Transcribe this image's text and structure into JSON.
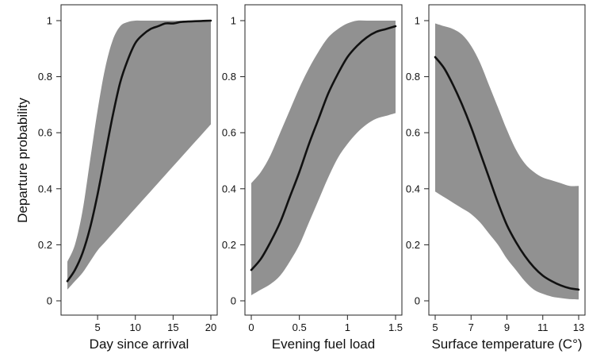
{
  "chart_data": [
    {
      "type": "line",
      "title": "",
      "xlabel": "Day since arrival",
      "ylabel": "Departure probability",
      "xlim": [
        1,
        20
      ],
      "ylim": [
        0,
        1
      ],
      "xticks": [
        5,
        10,
        15,
        20
      ],
      "xtick_labels": [
        "5",
        "10",
        "15",
        "20"
      ],
      "yticks": [
        0,
        0.2,
        0.4,
        0.6,
        0.8,
        1
      ],
      "ytick_labels": [
        "0",
        "0.2",
        "0.4",
        "0.6",
        "0.8",
        "1"
      ],
      "x": [
        1,
        2,
        3,
        4,
        5,
        6,
        7,
        8,
        9,
        10,
        11,
        12,
        13,
        14,
        15,
        16,
        17,
        18,
        19,
        20
      ],
      "series": [
        {
          "values": [
            0.07,
            0.11,
            0.17,
            0.26,
            0.38,
            0.52,
            0.66,
            0.78,
            0.86,
            0.92,
            0.95,
            0.97,
            0.98,
            0.99,
            0.99,
            0.995,
            0.997,
            0.998,
            0.999,
            1.0
          ],
          "lower": [
            0.04,
            0.07,
            0.1,
            0.14,
            0.18,
            0.21,
            0.24,
            0.27,
            0.3,
            0.33,
            0.36,
            0.39,
            0.42,
            0.45,
            0.48,
            0.51,
            0.54,
            0.57,
            0.6,
            0.63
          ],
          "upper": [
            0.14,
            0.2,
            0.32,
            0.5,
            0.68,
            0.83,
            0.93,
            0.98,
            0.995,
            1.0,
            1.0,
            1.0,
            1.0,
            1.0,
            1.0,
            1.0,
            1.0,
            1.0,
            1.0,
            1.0
          ]
        }
      ],
      "grid": false,
      "colors": {
        "band": "#919191",
        "line": "#111111"
      }
    },
    {
      "type": "line",
      "title": "",
      "xlabel": "Evening fuel load",
      "ylabel": "",
      "xlim": [
        0,
        1.5
      ],
      "ylim": [
        0,
        1
      ],
      "xticks": [
        0,
        0.5,
        1,
        1.5
      ],
      "xtick_labels": [
        "0",
        "0.5",
        "1",
        "1.5"
      ],
      "yticks": [
        0,
        0.2,
        0.4,
        0.6,
        0.8,
        1
      ],
      "ytick_labels": [
        "0",
        "0.2",
        "0.4",
        "0.6",
        "0.8",
        "1"
      ],
      "x": [
        0,
        0.1,
        0.2,
        0.3,
        0.4,
        0.5,
        0.6,
        0.7,
        0.8,
        0.9,
        1.0,
        1.1,
        1.2,
        1.3,
        1.4,
        1.5
      ],
      "series": [
        {
          "values": [
            0.11,
            0.15,
            0.21,
            0.28,
            0.37,
            0.46,
            0.56,
            0.65,
            0.74,
            0.81,
            0.87,
            0.91,
            0.94,
            0.96,
            0.97,
            0.98
          ],
          "lower": [
            0.02,
            0.04,
            0.06,
            0.09,
            0.14,
            0.2,
            0.28,
            0.36,
            0.44,
            0.51,
            0.56,
            0.6,
            0.63,
            0.65,
            0.66,
            0.67
          ],
          "upper": [
            0.42,
            0.46,
            0.52,
            0.6,
            0.68,
            0.76,
            0.83,
            0.89,
            0.94,
            0.97,
            0.99,
            1.0,
            1.0,
            1.0,
            1.0,
            1.0
          ]
        }
      ],
      "grid": false,
      "colors": {
        "band": "#919191",
        "line": "#111111"
      }
    },
    {
      "type": "line",
      "title": "",
      "xlabel": "Surface temperature (C°)",
      "ylabel": "",
      "xlim": [
        5,
        13
      ],
      "ylim": [
        0,
        1
      ],
      "xticks": [
        5,
        7,
        9,
        11,
        13
      ],
      "xtick_labels": [
        "5",
        "7",
        "9",
        "11",
        "13"
      ],
      "yticks": [
        0,
        0.2,
        0.4,
        0.6,
        0.8,
        1
      ],
      "ytick_labels": [
        "0",
        "0.2",
        "0.4",
        "0.6",
        "0.8",
        "1"
      ],
      "x": [
        5,
        5.5,
        6,
        6.5,
        7,
        7.5,
        8,
        8.5,
        9,
        9.5,
        10,
        10.5,
        11,
        11.5,
        12,
        12.5,
        13
      ],
      "series": [
        {
          "values": [
            0.87,
            0.83,
            0.77,
            0.7,
            0.62,
            0.53,
            0.44,
            0.35,
            0.27,
            0.21,
            0.16,
            0.12,
            0.09,
            0.07,
            0.055,
            0.045,
            0.04
          ],
          "lower": [
            0.39,
            0.37,
            0.35,
            0.33,
            0.31,
            0.28,
            0.24,
            0.2,
            0.15,
            0.11,
            0.07,
            0.04,
            0.025,
            0.015,
            0.01,
            0.006,
            0.005
          ],
          "upper": [
            0.99,
            0.98,
            0.97,
            0.95,
            0.91,
            0.85,
            0.77,
            0.69,
            0.61,
            0.54,
            0.49,
            0.46,
            0.44,
            0.43,
            0.42,
            0.41,
            0.41
          ]
        }
      ],
      "grid": false,
      "colors": {
        "band": "#919191",
        "line": "#111111"
      }
    }
  ]
}
